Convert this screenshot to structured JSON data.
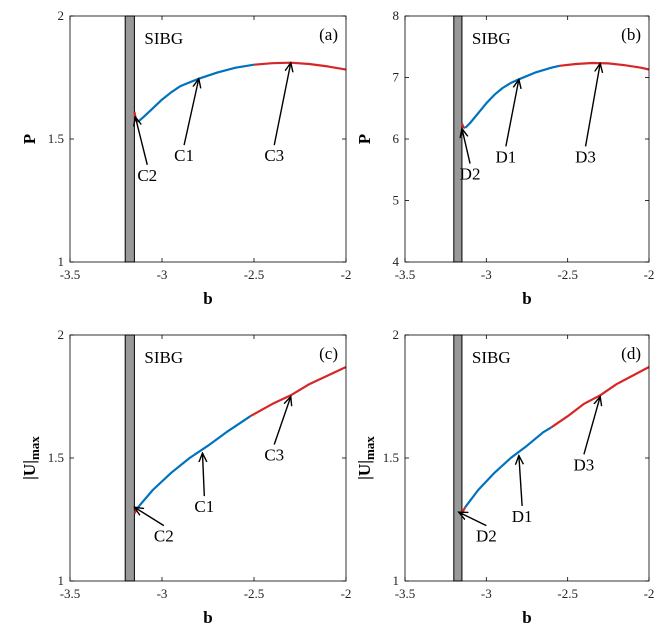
{
  "colors": {
    "blue": "#0072BD",
    "red": "#D62728",
    "band": "#999999"
  },
  "chart_data": [
    {
      "type": "line",
      "panel": "(a)",
      "band_label": "SIBG",
      "band": [
        -3.2,
        -3.15
      ],
      "xlabel": "b",
      "ylabel": "P",
      "ylabel_sub": "",
      "xlim": [
        -3.5,
        -2
      ],
      "ylim": [
        1,
        2
      ],
      "xticks": [
        "-3.5",
        "-3",
        "-2.5",
        "-2"
      ],
      "yticks": [
        "1",
        "1.5",
        "2"
      ],
      "series": [
        {
          "color": "red",
          "x": [
            -3.15,
            -3.14,
            -3.13
          ],
          "y": [
            1.61,
            1.575,
            1.57
          ]
        },
        {
          "color": "blue",
          "x": [
            -3.13,
            -3.1,
            -3.05,
            -3.0,
            -2.95,
            -2.9,
            -2.85,
            -2.8,
            -2.7,
            -2.6,
            -2.5
          ],
          "y": [
            1.57,
            1.59,
            1.625,
            1.66,
            1.69,
            1.715,
            1.73,
            1.745,
            1.77,
            1.79,
            1.802
          ]
        },
        {
          "color": "red",
          "x": [
            -2.5,
            -2.4,
            -2.3,
            -2.2,
            -2.1,
            -2.0
          ],
          "y": [
            1.802,
            1.808,
            1.81,
            1.805,
            1.795,
            1.782
          ]
        }
      ],
      "annotations": [
        {
          "label": "C2",
          "text_xy": [
            -3.08,
            1.33
          ],
          "tip_xy": [
            -3.145,
            1.59
          ]
        },
        {
          "label": "C1",
          "text_xy": [
            -2.88,
            1.41
          ],
          "tip_xy": [
            -2.8,
            1.745
          ]
        },
        {
          "label": "C3",
          "text_xy": [
            -2.39,
            1.41
          ],
          "tip_xy": [
            -2.3,
            1.81
          ]
        }
      ]
    },
    {
      "type": "line",
      "panel": "(b)",
      "band_label": "SIBG",
      "band": [
        -3.2,
        -3.15
      ],
      "xlabel": "b",
      "ylabel": "P",
      "ylabel_sub": "",
      "xlim": [
        -3.5,
        -2
      ],
      "ylim": [
        4,
        8
      ],
      "xticks": [
        "-3.5",
        "-3",
        "-2.5",
        "-2"
      ],
      "yticks": [
        "4",
        "5",
        "6",
        "7",
        "8"
      ],
      "series": [
        {
          "color": "red",
          "x": [
            -3.15,
            -3.14,
            -3.13
          ],
          "y": [
            6.25,
            6.19,
            6.18
          ]
        },
        {
          "color": "blue",
          "x": [
            -3.13,
            -3.1,
            -3.05,
            -3.0,
            -2.95,
            -2.9,
            -2.85,
            -2.8,
            -2.7,
            -2.6,
            -2.55
          ],
          "y": [
            6.18,
            6.26,
            6.42,
            6.58,
            6.72,
            6.83,
            6.91,
            6.97,
            7.08,
            7.16,
            7.19
          ]
        },
        {
          "color": "red",
          "x": [
            -2.55,
            -2.45,
            -2.35,
            -2.25,
            -2.15,
            -2.05,
            -2.0
          ],
          "y": [
            7.19,
            7.22,
            7.235,
            7.23,
            7.2,
            7.16,
            7.13
          ]
        }
      ],
      "annotations": [
        {
          "label": "D2",
          "text_xy": [
            -3.1,
            5.34
          ],
          "tip_xy": [
            -3.15,
            6.17
          ]
        },
        {
          "label": "D1",
          "text_xy": [
            -2.88,
            5.62
          ],
          "tip_xy": [
            -2.8,
            6.97
          ]
        },
        {
          "label": "D3",
          "text_xy": [
            -2.39,
            5.62
          ],
          "tip_xy": [
            -2.3,
            7.23
          ]
        }
      ]
    },
    {
      "type": "line",
      "panel": "(c)",
      "band_label": "SIBG",
      "band": [
        -3.2,
        -3.15
      ],
      "xlabel": "b",
      "ylabel": "|U|",
      "ylabel_sub": "max",
      "xlim": [
        -3.5,
        -2
      ],
      "ylim": [
        1,
        2
      ],
      "xticks": [
        "-3.5",
        "-3",
        "-2.5",
        "-2"
      ],
      "yticks": [
        "1",
        "1.5",
        "2"
      ],
      "series": [
        {
          "color": "red",
          "x": [
            -3.15,
            -3.13
          ],
          "y": [
            1.275,
            1.3
          ]
        },
        {
          "color": "blue",
          "x": [
            -3.13,
            -3.05,
            -2.95,
            -2.85,
            -2.75,
            -2.65,
            -2.55,
            -2.52
          ],
          "y": [
            1.3,
            1.37,
            1.44,
            1.5,
            1.55,
            1.605,
            1.655,
            1.67
          ]
        },
        {
          "color": "red",
          "x": [
            -2.52,
            -2.4,
            -2.3,
            -2.2,
            -2.1,
            -2.0
          ],
          "y": [
            1.67,
            1.72,
            1.755,
            1.8,
            1.835,
            1.87
          ]
        }
      ],
      "annotations": [
        {
          "label": "C2",
          "text_xy": [
            -2.99,
            1.16
          ],
          "tip_xy": [
            -3.15,
            1.3
          ]
        },
        {
          "label": "C1",
          "text_xy": [
            -2.77,
            1.28
          ],
          "tip_xy": [
            -2.78,
            1.52
          ]
        },
        {
          "label": "C3",
          "text_xy": [
            -2.39,
            1.49
          ],
          "tip_xy": [
            -2.3,
            1.75
          ]
        }
      ]
    },
    {
      "type": "line",
      "panel": "(d)",
      "band_label": "SIBG",
      "band": [
        -3.2,
        -3.15
      ],
      "xlabel": "b",
      "ylabel": "|U|",
      "ylabel_sub": "max",
      "xlim": [
        -3.5,
        -2
      ],
      "ylim": [
        1,
        2
      ],
      "xticks": [
        "-3.5",
        "-3",
        "-2.5",
        "-2"
      ],
      "yticks": [
        "1",
        "1.5",
        "2"
      ],
      "series": [
        {
          "color": "red",
          "x": [
            -3.15,
            -3.13
          ],
          "y": [
            1.275,
            1.3
          ]
        },
        {
          "color": "blue",
          "x": [
            -3.13,
            -3.05,
            -2.95,
            -2.85,
            -2.75,
            -2.65,
            -2.6
          ],
          "y": [
            1.3,
            1.37,
            1.44,
            1.5,
            1.55,
            1.605,
            1.625
          ]
        },
        {
          "color": "red",
          "x": [
            -2.6,
            -2.5,
            -2.4,
            -2.3,
            -2.2,
            -2.1,
            -2.0
          ],
          "y": [
            1.625,
            1.67,
            1.72,
            1.755,
            1.8,
            1.835,
            1.87
          ]
        }
      ],
      "annotations": [
        {
          "label": "D2",
          "text_xy": [
            -3.0,
            1.16
          ],
          "tip_xy": [
            -3.17,
            1.28
          ]
        },
        {
          "label": "D1",
          "text_xy": [
            -2.78,
            1.24
          ],
          "tip_xy": [
            -2.8,
            1.51
          ]
        },
        {
          "label": "D3",
          "text_xy": [
            -2.4,
            1.45
          ],
          "tip_xy": [
            -2.3,
            1.75
          ]
        }
      ]
    }
  ]
}
